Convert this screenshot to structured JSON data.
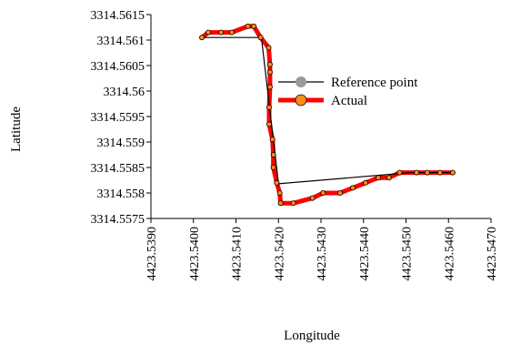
{
  "chart_data": {
    "type": "line",
    "xlabel": "Longitude",
    "ylabel": "Latitude",
    "xlim": [
      4423.539,
      4423.547
    ],
    "ylim": [
      3314.5575,
      3314.5615
    ],
    "x_ticks": [
      "4423.5390",
      "4423.5400",
      "4423.5410",
      "4423.5420",
      "4423.5430",
      "4423.5440",
      "4423.5450",
      "4423.5460",
      "4423.5470"
    ],
    "y_ticks": [
      "3314.5575",
      "3314.558",
      "3314.5585",
      "3314.559",
      "3314.5595",
      "3314.56",
      "3314.5605",
      "3314.561",
      "3314.5615"
    ],
    "grid": false,
    "legend": "center-right",
    "series": [
      {
        "name": "Reference point",
        "color": "#000000",
        "marker_color": "#999999",
        "points": [
          [
            4423.5402,
            3314.56105
          ],
          [
            4423.5416,
            3314.56105
          ],
          [
            4423.542,
            3314.55818
          ],
          [
            4423.5451,
            3314.5584
          ],
          [
            4423.5461,
            3314.5584
          ]
        ]
      },
      {
        "name": "Actual",
        "color": "#ff0000",
        "marker_color": "#ff8c1a",
        "points": [
          [
            4423.5402,
            3314.56105
          ],
          [
            4423.54035,
            3314.56115
          ],
          [
            4423.54065,
            3314.56115
          ],
          [
            4423.5409,
            3314.56115
          ],
          [
            4423.54128,
            3314.56127
          ],
          [
            4423.54142,
            3314.56127
          ],
          [
            4423.54158,
            3314.56105
          ],
          [
            4423.54177,
            3314.56085
          ],
          [
            4423.5418,
            3314.56052
          ],
          [
            4423.5418,
            3314.56037
          ],
          [
            4423.5418,
            3314.56008
          ],
          [
            4423.54178,
            3314.55968
          ],
          [
            4423.54178,
            3314.55935
          ],
          [
            4423.54186,
            3314.55905
          ],
          [
            4423.54188,
            3314.55875
          ],
          [
            4423.54188,
            3314.5585
          ],
          [
            4423.54196,
            3314.5582
          ],
          [
            4423.54203,
            3314.558
          ],
          [
            4423.54205,
            3314.5578
          ],
          [
            4423.54235,
            3314.5578
          ],
          [
            4423.5428,
            3314.5579
          ],
          [
            4423.54305,
            3314.558
          ],
          [
            4423.54345,
            3314.558
          ],
          [
            4423.54375,
            3314.5581
          ],
          [
            4423.54405,
            3314.5582
          ],
          [
            4423.54435,
            3314.5583
          ],
          [
            4423.5446,
            3314.5583
          ],
          [
            4423.54485,
            3314.5584
          ],
          [
            4423.54525,
            3314.5584
          ],
          [
            4423.5455,
            3314.5584
          ],
          [
            4423.5458,
            3314.5584
          ],
          [
            4423.5461,
            3314.5584
          ]
        ]
      }
    ]
  }
}
